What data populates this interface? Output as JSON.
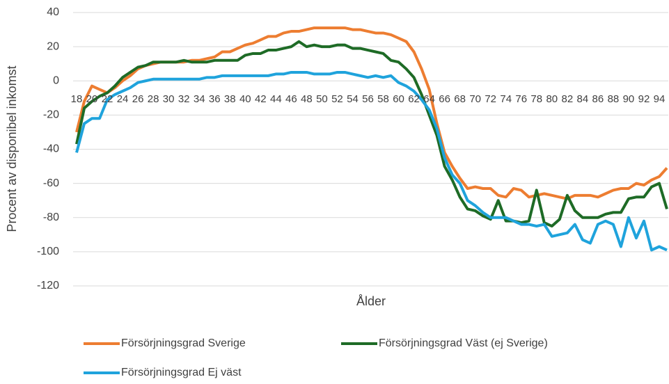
{
  "chart_data": {
    "type": "line",
    "y_label": "Procent av disponibel inkomst",
    "x_label": "Ålder",
    "categories": [
      "18",
      null,
      "20",
      null,
      "22",
      null,
      "24",
      null,
      "26",
      null,
      "28",
      null,
      "30",
      null,
      "32",
      null,
      "34",
      null,
      "36",
      null,
      "38",
      null,
      "40",
      null,
      "42",
      null,
      "44",
      null,
      "46",
      null,
      "48",
      null,
      "50",
      null,
      "52",
      null,
      "54",
      null,
      "56",
      null,
      "58",
      null,
      "60",
      null,
      "62",
      null,
      "64",
      null,
      "66",
      null,
      "68",
      null,
      "70",
      null,
      "72",
      null,
      "74",
      null,
      "76",
      null,
      "78",
      null,
      "80",
      null,
      "82",
      null,
      "84",
      null,
      "86",
      null,
      "88",
      null,
      "90",
      null,
      "92",
      null,
      "94",
      null
    ],
    "series": [
      {
        "name": "Försörjningsgrad Sverige",
        "color": "#ed7d31",
        "values": [
          -30,
          -12,
          -3,
          -5,
          -7,
          -4,
          0,
          3,
          7,
          9,
          10,
          11,
          11,
          11,
          11,
          12,
          12,
          13,
          14,
          17,
          17,
          19,
          21,
          22,
          24,
          26,
          26,
          28,
          29,
          29,
          30,
          31,
          31,
          31,
          31,
          31,
          30,
          30,
          29,
          28,
          28,
          27,
          25,
          23,
          17,
          7,
          -5,
          -25,
          -42,
          -50,
          -57,
          -63,
          -62,
          -63,
          -63,
          -67,
          -68,
          -63,
          -64,
          -68,
          -67,
          -66,
          -67,
          -68,
          -69,
          -67,
          -67,
          -67,
          -68,
          -66,
          -64,
          -63,
          -63,
          -60,
          -61,
          -58,
          -56,
          -51
        ]
      },
      {
        "name": "Försörjningsgrad Väst (ej Sverige)",
        "color": "#1e6b26",
        "values": [
          -37,
          -16,
          -12,
          -9,
          -7,
          -3,
          2,
          5,
          8,
          9,
          11,
          11,
          11,
          11,
          12,
          11,
          11,
          11,
          12,
          12,
          12,
          12,
          15,
          16,
          16,
          18,
          18,
          19,
          20,
          23,
          20,
          21,
          20,
          20,
          21,
          21,
          19,
          19,
          18,
          17,
          16,
          12,
          11,
          7,
          2,
          -8,
          -20,
          -32,
          -50,
          -58,
          -68,
          -75,
          -76,
          -79,
          -81,
          -70,
          -82,
          -82,
          -83,
          -82,
          -64,
          -83,
          -85,
          -81,
          -67,
          -76,
          -80,
          -80,
          -80,
          -78,
          -77,
          -77,
          -69,
          -68,
          -68,
          -62,
          -60,
          -75
        ]
      },
      {
        "name": "Försörjningsgrad Ej väst",
        "color": "#1fa3dc",
        "values": [
          -42,
          -25,
          -22,
          -22,
          -11,
          -8,
          -6,
          -4,
          -1,
          0,
          1,
          1,
          1,
          1,
          1,
          1,
          1,
          2,
          2,
          3,
          3,
          3,
          3,
          3,
          3,
          3,
          4,
          4,
          5,
          5,
          5,
          4,
          4,
          4,
          5,
          5,
          4,
          3,
          2,
          3,
          2,
          3,
          -1,
          -3,
          -6,
          -11,
          -17,
          -28,
          -45,
          -55,
          -60,
          -70,
          -73,
          -77,
          -80,
          -80,
          -80,
          -82,
          -84,
          -84,
          -85,
          -84,
          -91,
          -90,
          -89,
          -84,
          -93,
          -95,
          -84,
          -82,
          -84,
          -97,
          -80,
          -92,
          -82,
          -99,
          -97,
          -99
        ]
      }
    ],
    "ylim": [
      -120,
      40
    ],
    "yticks": [
      -120,
      -100,
      -80,
      -60,
      -40,
      -20,
      0,
      20,
      40
    ],
    "grid": true,
    "legend": "bottom"
  }
}
